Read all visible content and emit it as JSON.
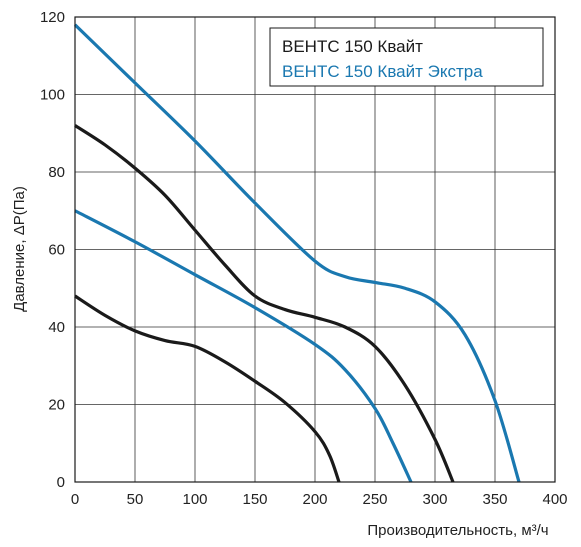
{
  "chart_data": {
    "type": "line",
    "title": "",
    "xlabel": "Производительность, м³/ч",
    "ylabel": "Давление, ΔP(Па)",
    "xlim": [
      0,
      400
    ],
    "ylim": [
      0,
      120
    ],
    "x_ticks": [
      0,
      50,
      100,
      150,
      200,
      250,
      300,
      350,
      400
    ],
    "y_ticks": [
      0,
      20,
      40,
      60,
      80,
      100,
      120
    ],
    "grid": true,
    "legend_position": "top-right",
    "legend": [
      {
        "label": "ВЕНТС 150 Квайт",
        "color": "#1a1a1a"
      },
      {
        "label": "ВЕНТС 150 Квайт Экстра",
        "color": "#1a78b0"
      }
    ],
    "series": [
      {
        "color": "#1a1a1a",
        "points": [
          [
            0,
            48
          ],
          [
            25,
            43
          ],
          [
            50,
            39
          ],
          [
            75,
            36.5
          ],
          [
            100,
            35
          ],
          [
            125,
            31
          ],
          [
            150,
            26
          ],
          [
            175,
            20.5
          ],
          [
            200,
            13
          ],
          [
            212,
            7
          ],
          [
            220,
            0
          ]
        ]
      },
      {
        "color": "#1a1a1a",
        "points": [
          [
            0,
            92
          ],
          [
            25,
            87
          ],
          [
            50,
            81
          ],
          [
            75,
            74
          ],
          [
            100,
            65
          ],
          [
            125,
            56
          ],
          [
            150,
            48
          ],
          [
            175,
            44.5
          ],
          [
            200,
            42.5
          ],
          [
            225,
            40
          ],
          [
            250,
            35
          ],
          [
            275,
            25
          ],
          [
            300,
            11
          ],
          [
            315,
            0
          ]
        ]
      },
      {
        "color": "#1a78b0",
        "points": [
          [
            0,
            70
          ],
          [
            50,
            62
          ],
          [
            100,
            53.5
          ],
          [
            150,
            45
          ],
          [
            200,
            35.5
          ],
          [
            225,
            29
          ],
          [
            250,
            19
          ],
          [
            265,
            10
          ],
          [
            280,
            0
          ]
        ]
      },
      {
        "color": "#1a78b0",
        "points": [
          [
            0,
            118
          ],
          [
            50,
            103
          ],
          [
            100,
            88
          ],
          [
            150,
            72
          ],
          [
            200,
            57
          ],
          [
            225,
            53
          ],
          [
            250,
            51.5
          ],
          [
            275,
            50
          ],
          [
            300,
            46.5
          ],
          [
            325,
            38
          ],
          [
            350,
            21
          ],
          [
            370,
            0
          ]
        ]
      }
    ]
  }
}
